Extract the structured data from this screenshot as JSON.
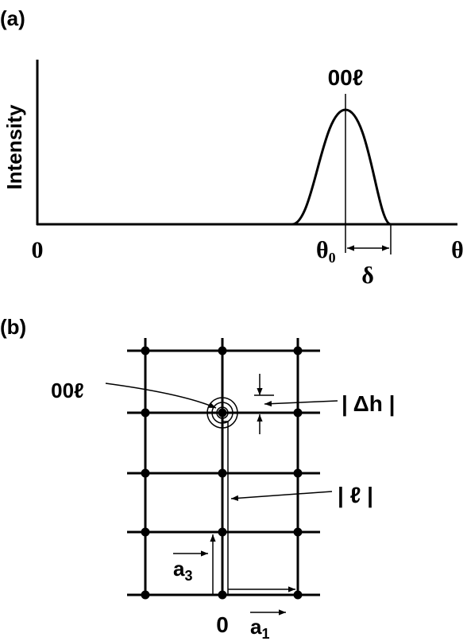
{
  "panel_a": {
    "label": "(a)",
    "y_axis_label": "Intensity",
    "peak_label": "00ℓ",
    "origin_label": "0",
    "theta0": {
      "symbol": "θ",
      "subscript": "0"
    },
    "theta": "θ",
    "delta": "δ"
  },
  "panel_b": {
    "label": "(b)",
    "reflection_label": "00ℓ",
    "delta_h_label": "| Δh |",
    "l_label": "| ℓ |",
    "origin_label": "0",
    "a3": {
      "symbol": "a",
      "subscript": "3"
    },
    "a1": {
      "symbol": "a",
      "subscript": "1"
    }
  }
}
